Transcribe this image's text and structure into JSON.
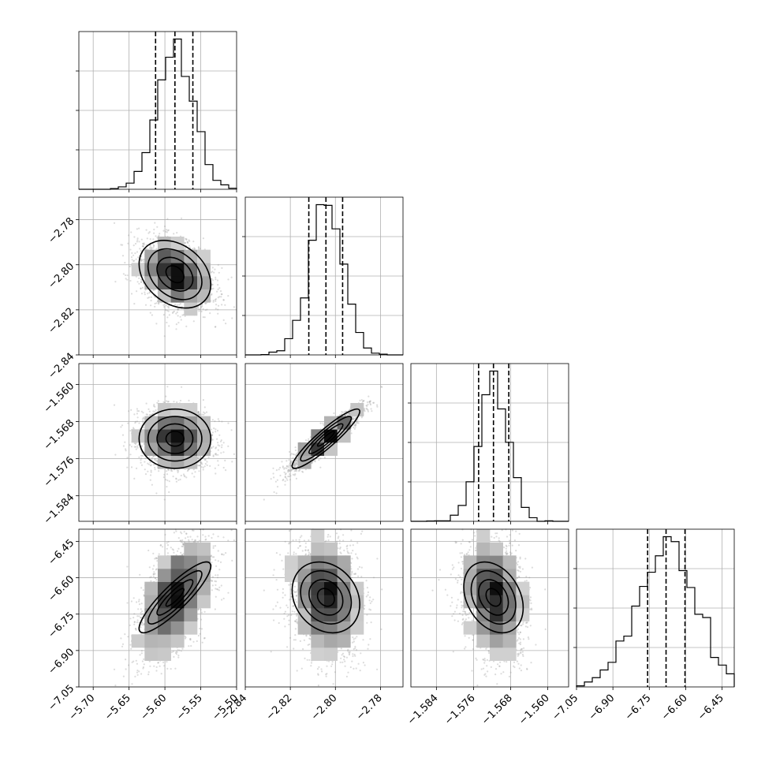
{
  "chart_data": {
    "type": "corner",
    "parameters": [
      {
        "xticks": [
          "−5.70",
          "−5.65",
          "−5.60",
          "−5.55",
          "−5.50"
        ],
        "yticks": [],
        "range": [
          -5.72,
          -5.5
        ],
        "mean": -5.586,
        "sd": 0.025,
        "quantiles": [
          -5.613,
          -5.586,
          -5.561
        ]
      },
      {
        "xticks": [
          "−2.84",
          "−2.82",
          "−2.80",
          "−2.78"
        ],
        "yticks": [
          "−2.78",
          "−2.80",
          "−2.82",
          "−2.84"
        ],
        "range": [
          -2.84,
          -2.77
        ],
        "mean": -2.8042,
        "sd": 0.0075,
        "quantiles": [
          -2.8118,
          -2.8042,
          -2.7968
        ]
      },
      {
        "xticks": [
          "−1.584",
          "−1.576",
          "−1.568",
          "−1.560"
        ],
        "yticks": [
          "−1.560",
          "−1.568",
          "−1.576",
          "−1.584"
        ],
        "range": [
          -1.5895,
          -1.5555
        ],
        "mean": -1.5717,
        "sd": 0.0032,
        "quantiles": [
          -1.5749,
          -1.5717,
          -1.5684
        ]
      },
      {
        "xticks": [
          "−7.05",
          "−6.90",
          "−6.75",
          "−6.60",
          "−6.45"
        ],
        "yticks": [
          "−6.45",
          "−6.60",
          "−6.75",
          "−6.90",
          "−7.05"
        ],
        "range": [
          -7.05,
          -6.4
        ],
        "mean": -6.681,
        "sd": 0.073,
        "quantiles": [
          -6.757,
          -6.681,
          -6.603
        ]
      }
    ],
    "correlations": [
      [
        1,
        -0.3,
        0.0,
        0.88
      ],
      [
        -0.3,
        1,
        0.92,
        -0.2
      ],
      [
        0.0,
        0.92,
        1,
        -0.3
      ],
      [
        0.88,
        -0.2,
        -0.3,
        1
      ]
    ],
    "histogram_bins": 20,
    "contour_levels_sigma": [
      0.5,
      1.0,
      1.5,
      2.0
    ],
    "quantile_style": "dashed",
    "grid": true,
    "colors": {
      "ink": "#000000",
      "grid": "#b0b0b0",
      "density_light": "#e8e8e8",
      "density_dark": "#111111",
      "samples": "#9a9a9a"
    }
  }
}
